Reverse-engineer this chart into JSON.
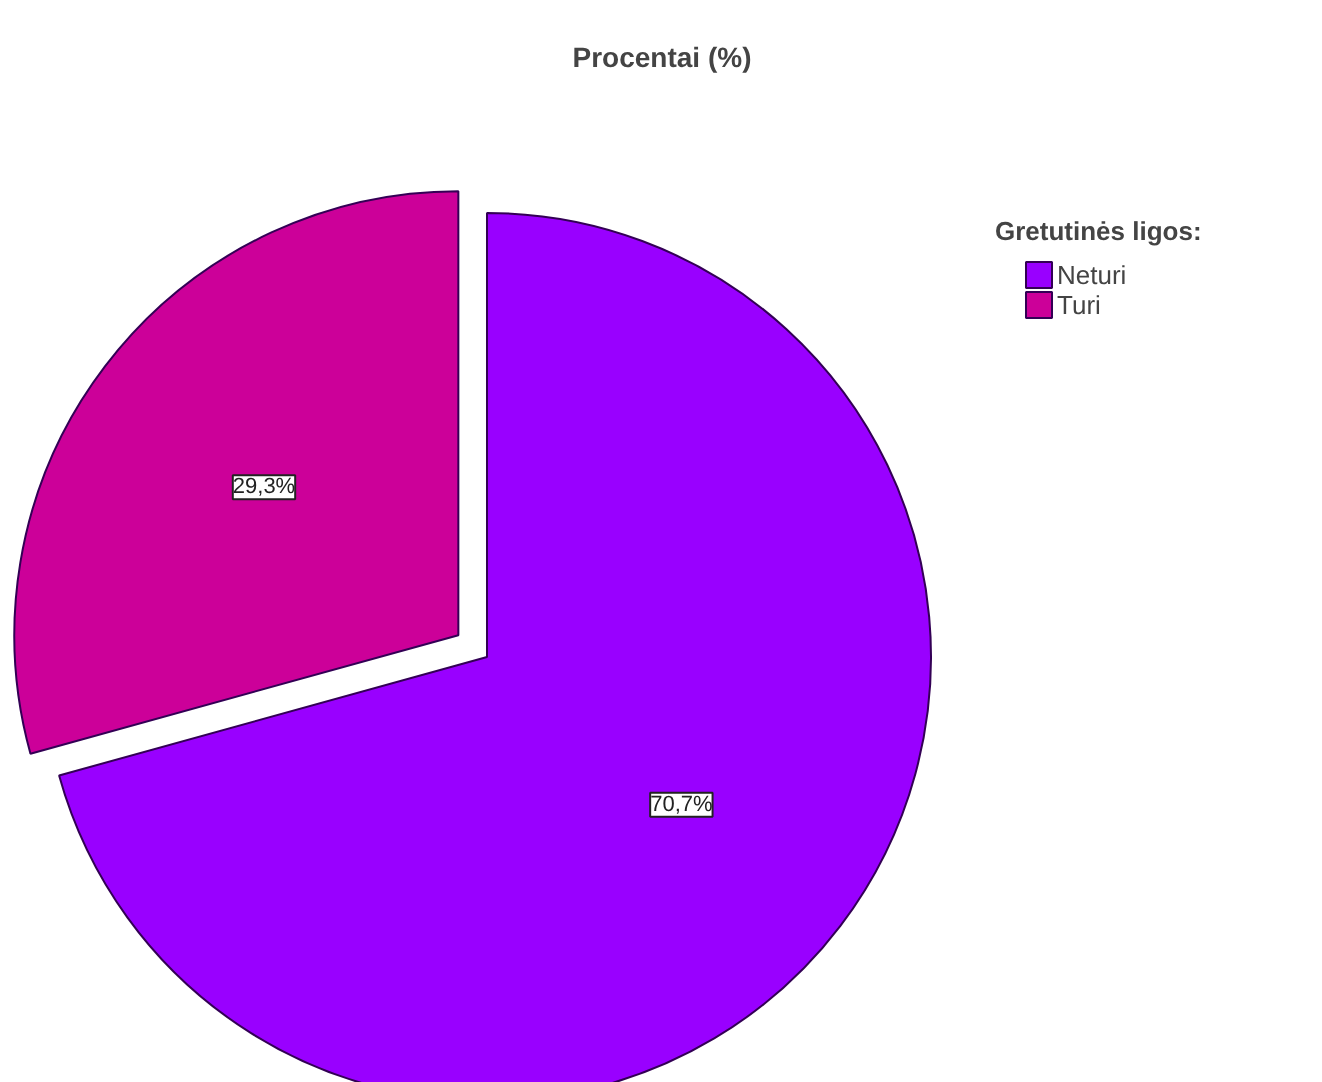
{
  "chart_data": {
    "type": "pie",
    "title": "Procentai (%)",
    "legend_title": "Gretutinės ligos:",
    "legend": "right",
    "categories": [
      "Neturi",
      "Turi"
    ],
    "values": [
      70.7,
      29.3
    ],
    "colors": [
      "#9900ff",
      "#cc0099"
    ],
    "value_labels": [
      "70,7%",
      "29,3%"
    ]
  }
}
